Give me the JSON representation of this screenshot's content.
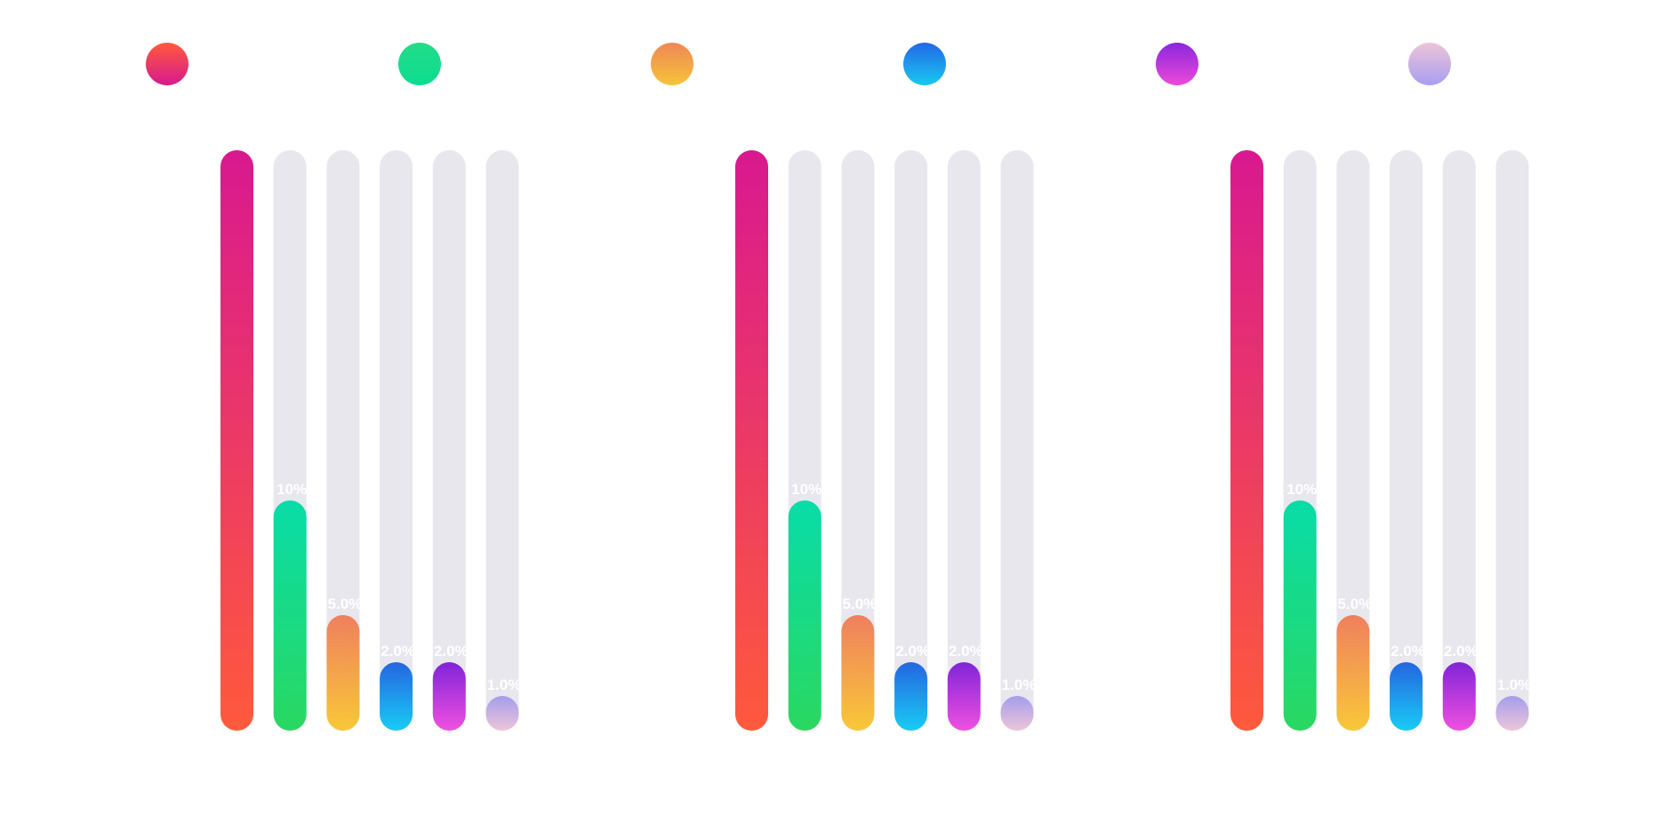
{
  "chart_data": {
    "type": "bar",
    "legend_position": "top",
    "grid": false,
    "ylim": [
      0,
      100
    ],
    "series": [
      {
        "color_top": "#fe5a3c",
        "color_bottom": "#d8198f"
      },
      {
        "color_top": "#22dc88",
        "color_bottom": "#0cdc90"
      },
      {
        "color_top": "#ee8856",
        "color_bottom": "#f7c33a"
      },
      {
        "color_top": "#2468e6",
        "color_bottom": "#18c8f0"
      },
      {
        "color_top": "#8a26dc",
        "color_bottom": "#ec4ad8"
      },
      {
        "color_top": "#ecc4d8",
        "color_bottom": "#a89ef0"
      }
    ],
    "groups": [
      {
        "values": [
          100,
          10,
          5,
          2,
          2,
          1
        ],
        "labels": [
          "",
          "10%",
          "5.0%",
          "2.0%",
          "2.0%",
          "1.0%"
        ]
      },
      {
        "values": [
          100,
          10,
          5,
          2,
          2,
          1
        ],
        "labels": [
          "",
          "10%",
          "5.0%",
          "2.0%",
          "2.0%",
          "1.0%"
        ]
      },
      {
        "values": [
          100,
          10,
          5,
          2,
          2,
          1
        ],
        "labels": [
          "",
          "10%",
          "5.0%",
          "2.0%",
          "2.0%",
          "1.0%"
        ]
      }
    ],
    "bar_gradients": [
      {
        "top": "#d8198f",
        "bottom": "#fe5a3c"
      },
      {
        "top": "#08dca8",
        "bottom": "#2ad860"
      },
      {
        "top": "#ef7f5e",
        "bottom": "#f8c838"
      },
      {
        "top": "#2466e0",
        "bottom": "#18ccf4"
      },
      {
        "top": "#8024d8",
        "bottom": "#f050e0"
      },
      {
        "top": "#a69cec",
        "bottom": "#ecc6d8"
      }
    ],
    "track_color": "#e8e7ed"
  }
}
